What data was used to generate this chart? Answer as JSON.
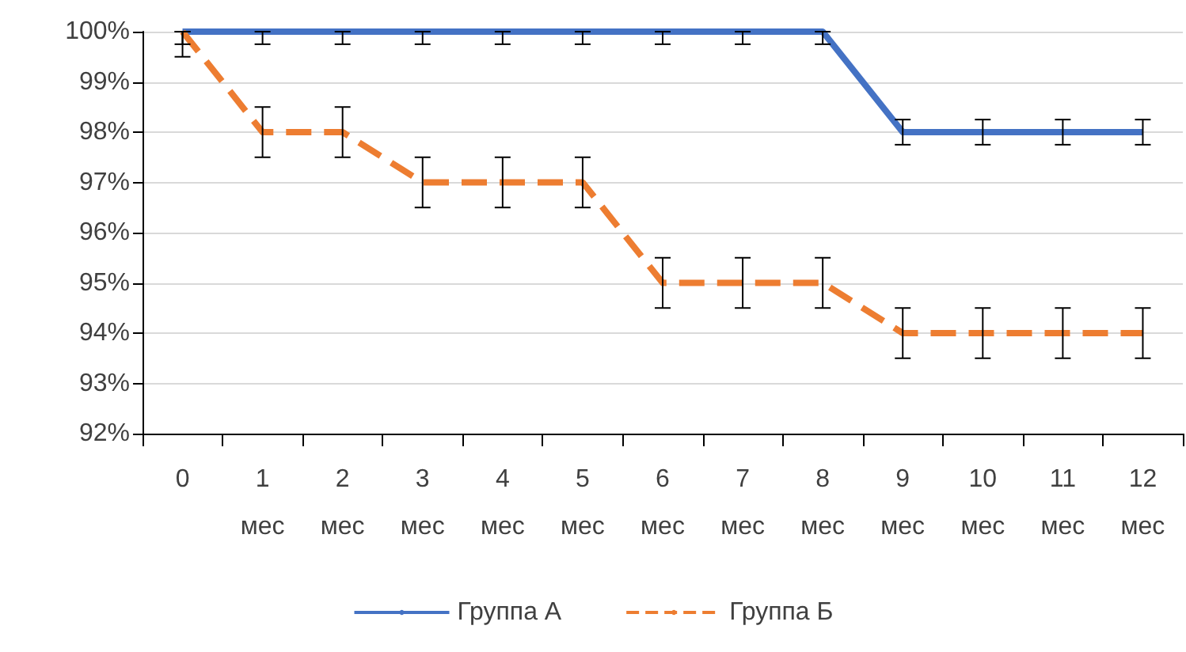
{
  "chart_data": {
    "type": "line",
    "categories": [
      "0",
      "1\nмес",
      "2\nмес",
      "3\nмес",
      "4\nмес",
      "5\nмес",
      "6\nмес",
      "7\nмес",
      "8\nмес",
      "9\nмес",
      "10\nмес",
      "11\nмес",
      "12\nмес"
    ],
    "series": [
      {
        "name": "Группа А",
        "color": "#4472c4",
        "line_style": "solid",
        "values": [
          100,
          100,
          100,
          100,
          100,
          100,
          100,
          100,
          100,
          98,
          98,
          98,
          98
        ],
        "errors": [
          [
            99.75,
            100
          ],
          [
            99.75,
            100
          ],
          [
            99.75,
            100
          ],
          [
            99.75,
            100
          ],
          [
            99.75,
            100
          ],
          [
            99.75,
            100
          ],
          [
            99.75,
            100
          ],
          [
            99.75,
            100
          ],
          [
            99.75,
            100
          ],
          [
            97.75,
            98.25
          ],
          [
            97.75,
            98.25
          ],
          [
            97.75,
            98.25
          ],
          [
            97.75,
            98.25
          ]
        ]
      },
      {
        "name": "Группа Б",
        "color": "#ed7d31",
        "line_style": "dashed",
        "values": [
          100,
          98,
          98,
          97,
          97,
          97,
          95,
          95,
          95,
          94,
          94,
          94,
          94
        ],
        "errors": [
          [
            99.5,
            100
          ],
          [
            97.5,
            98.5
          ],
          [
            97.5,
            98.5
          ],
          [
            96.5,
            97.5
          ],
          [
            96.5,
            97.5
          ],
          [
            96.5,
            97.5
          ],
          [
            94.5,
            95.5
          ],
          [
            94.5,
            95.5
          ],
          [
            94.5,
            95.5
          ],
          [
            93.5,
            94.5
          ],
          [
            93.5,
            94.5
          ],
          [
            93.5,
            94.5
          ],
          [
            93.5,
            94.5
          ]
        ]
      }
    ],
    "ylim": [
      92,
      100
    ],
    "yticks": [
      {
        "value": 92,
        "label": "92%"
      },
      {
        "value": 93,
        "label": "93%"
      },
      {
        "value": 94,
        "label": "94%"
      },
      {
        "value": 95,
        "label": "95%"
      },
      {
        "value": 96,
        "label": "96%"
      },
      {
        "value": 97,
        "label": "97%"
      },
      {
        "value": 98,
        "label": "98%"
      },
      {
        "value": 99,
        "label": "99%"
      },
      {
        "value": 100,
        "label": "100%"
      }
    ],
    "grid": "y",
    "legend": "bottom",
    "marker": "none"
  }
}
